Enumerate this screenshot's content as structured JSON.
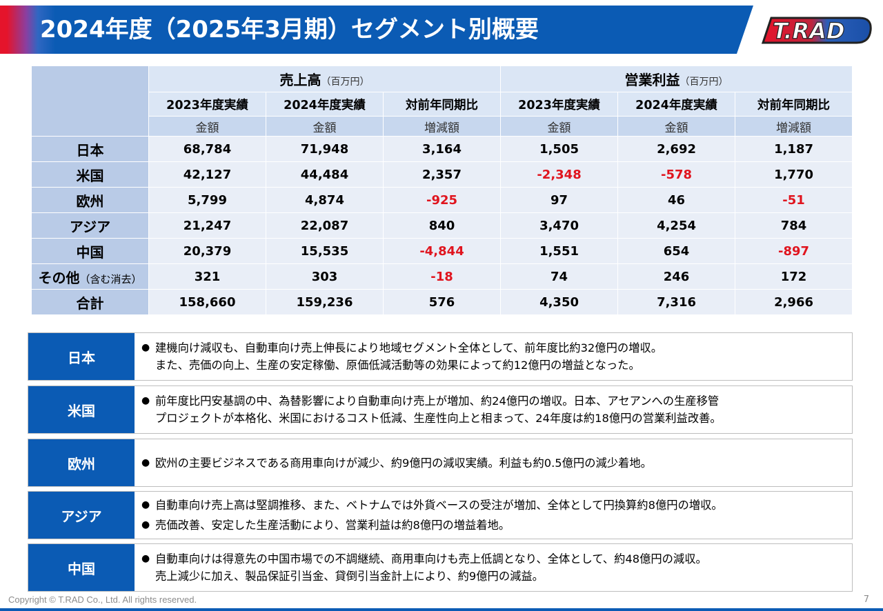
{
  "header": {
    "title": "2024年度（2025年3月期）セグメント別概要"
  },
  "logo": {
    "text": "T.RAD"
  },
  "table": {
    "sales_title": "売上高",
    "profit_title": "営業利益",
    "unit": "（百万円）",
    "col_2023": "2023年度実績",
    "col_2024": "2024年度実績",
    "col_yoy": "対前年同期比",
    "sub_amount": "金額",
    "sub_change": "増減額",
    "other_sub": "（含む消去）",
    "rows": [
      {
        "name": "日本",
        "s23": "68,784",
        "s24": "71,948",
        "sd": "3,164",
        "p23": "1,505",
        "p24": "2,692",
        "pd": "1,187"
      },
      {
        "name": "米国",
        "s23": "42,127",
        "s24": "44,484",
        "sd": "2,357",
        "p23": "-2,348",
        "p24": "-578",
        "pd": "1,770"
      },
      {
        "name": "欧州",
        "s23": "5,799",
        "s24": "4,874",
        "sd": "-925",
        "p23": "97",
        "p24": "46",
        "pd": "-51"
      },
      {
        "name": "アジア",
        "s23": "21,247",
        "s24": "22,087",
        "sd": "840",
        "p23": "3,470",
        "p24": "4,254",
        "pd": "784"
      },
      {
        "name": "中国",
        "s23": "20,379",
        "s24": "15,535",
        "sd": "-4,844",
        "p23": "1,551",
        "p24": "654",
        "pd": "-897"
      },
      {
        "name": "その他",
        "s23": "321",
        "s24": "303",
        "sd": "-18",
        "p23": "74",
        "p24": "246",
        "pd": "172"
      },
      {
        "name": "合計",
        "s23": "158,660",
        "s24": "159,236",
        "sd": "576",
        "p23": "4,350",
        "p24": "7,316",
        "pd": "2,966"
      }
    ]
  },
  "bullet_glyph": "●",
  "segments": [
    {
      "label": "日本",
      "bullets": [
        {
          "lines": [
            "建機向け減収も、自動車向け売上伸長により地域セグメント全体として、前年度比約32億円の増収。",
            "また、売価の向上、生産の安定稼働、原価低減活動等の効果によって約12億円の増益となった。"
          ]
        }
      ]
    },
    {
      "label": "米国",
      "bullets": [
        {
          "lines": [
            "前年度比円安基調の中、為替影響により自動車向け売上が増加、約24億円の増収。日本、アセアンへの生産移管",
            "プロジェクトが本格化、米国におけるコスト低減、生産性向上と相まって、24年度は約18億円の営業利益改善。"
          ]
        }
      ]
    },
    {
      "label": "欧州",
      "bullets": [
        {
          "lines": [
            "欧州の主要ビジネスである商用車向けが減少、約9億円の減収実績。利益も約0.5億円の減少着地。"
          ]
        }
      ]
    },
    {
      "label": "アジア",
      "bullets": [
        {
          "lines": [
            "自動車向け売上高は堅調推移、また、ベトナムでは外貨ベースの受注が増加、全体として円換算約8億円の増収。"
          ]
        },
        {
          "lines": [
            "売価改善、安定した生産活動により、営業利益は約8億円の増益着地。"
          ]
        }
      ]
    },
    {
      "label": "中国",
      "bullets": [
        {
          "lines": [
            "自動車向けは得意先の中国市場での不調継続、商用車向けも売上低調となり、全体として、約48億円の減収。",
            "売上減少に加え、製品保証引当金、貸倒引当金計上により、約9億円の減益。"
          ]
        }
      ]
    }
  ],
  "footer": {
    "copyright": "Copyright © T.RAD Co., Ltd. All rights reserved.",
    "page": "7"
  }
}
